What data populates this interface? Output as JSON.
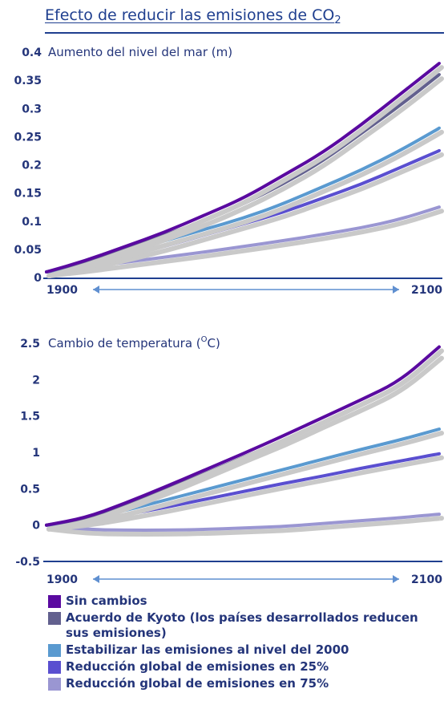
{
  "title": {
    "text": "Efecto de reducir las emisiones de CO",
    "sub": "2"
  },
  "colors": {
    "axis": "#1f3f8f",
    "text": "#24357a",
    "shadow": "#c9c9c9",
    "sin_cambios": "#5a0aa0",
    "kyoto": "#62608e",
    "estabilizar": "#5a9ad0",
    "reduccion25": "#5a4fd0",
    "reduccion75": "#9a96d2"
  },
  "chart_data": [
    {
      "type": "line",
      "title": "Aumento del nivel del mar (m)",
      "ylim": [
        0,
        0.4
      ],
      "yticks": [
        "0",
        "0.05",
        "0.1",
        "0.15",
        "0.2",
        "0.25",
        "0.3",
        "0.35",
        "0.4"
      ],
      "xlim": [
        1900,
        2100
      ],
      "x_start_label": "1900",
      "x_end_label": "2100",
      "x": [
        1900,
        1920,
        1940,
        1960,
        1980,
        2000,
        2020,
        2040,
        2060,
        2080,
        2100
      ],
      "series": [
        {
          "name": "Sin cambios",
          "values": [
            0.01,
            0.03,
            0.055,
            0.08,
            0.11,
            0.14,
            0.18,
            0.22,
            0.27,
            0.325,
            0.38
          ]
        },
        {
          "name": "Acuerdo de Kyoto (los países desarrollados reducen sus emisiones)",
          "values": [
            0.01,
            0.028,
            0.05,
            0.075,
            0.1,
            0.13,
            0.165,
            0.205,
            0.255,
            0.305,
            0.36
          ]
        },
        {
          "name": "Estabilizar las emisiones al nivel del 2000",
          "values": [
            0.01,
            0.025,
            0.045,
            0.065,
            0.085,
            0.105,
            0.13,
            0.16,
            0.19,
            0.225,
            0.265
          ]
        },
        {
          "name": "Reducción global de emisiones en 25%",
          "values": [
            0.01,
            0.022,
            0.038,
            0.055,
            0.075,
            0.095,
            0.115,
            0.14,
            0.165,
            0.195,
            0.225
          ]
        },
        {
          "name": "Reducción global de emisiones en 75%",
          "values": [
            0.01,
            0.018,
            0.027,
            0.036,
            0.045,
            0.055,
            0.065,
            0.076,
            0.088,
            0.103,
            0.125
          ]
        }
      ]
    },
    {
      "type": "line",
      "title": "Cambio de temperatura (",
      "title_sup": "O",
      "title_end": "C)",
      "ylim": [
        -0.5,
        2.5
      ],
      "yticks": [
        "-0.5",
        "0",
        "0.5",
        "1",
        "1.5",
        "2",
        "2.5"
      ],
      "xlim": [
        1900,
        2100
      ],
      "x_start_label": "1900",
      "x_end_label": "2100",
      "x": [
        1900,
        1920,
        1940,
        1960,
        1980,
        2000,
        2020,
        2040,
        2060,
        2080,
        2100
      ],
      "series": [
        {
          "name": "Sin cambios",
          "values": [
            0,
            0.1,
            0.3,
            0.52,
            0.75,
            0.98,
            1.22,
            1.47,
            1.72,
            1.98,
            2.45
          ]
        },
        {
          "name": "Acuerdo de Kyoto (los países desarrollados reducen sus emisiones)",
          "values": [
            0,
            0.09,
            0.28,
            0.48,
            0.7,
            0.93,
            1.15,
            1.4,
            1.64,
            1.9,
            2.35
          ]
        },
        {
          "name": "Estabilizar las emisiones al nivel del 2000",
          "values": [
            0,
            0.07,
            0.2,
            0.34,
            0.48,
            0.62,
            0.76,
            0.9,
            1.04,
            1.17,
            1.32
          ]
        },
        {
          "name": "Reducción global de emisiones en 25%",
          "values": [
            0,
            0.05,
            0.14,
            0.24,
            0.35,
            0.46,
            0.57,
            0.67,
            0.78,
            0.88,
            0.98
          ]
        },
        {
          "name": "Reducción global de emisiones en 75%",
          "values": [
            0,
            -0.06,
            -0.07,
            -0.07,
            -0.06,
            -0.04,
            -0.02,
            0.02,
            0.06,
            0.1,
            0.15
          ]
        }
      ]
    }
  ],
  "legend": [
    {
      "label": "Sin cambios",
      "color": "#5a0aa0"
    },
    {
      "label": "Acuerdo de Kyoto (los países desarrollados reducen sus emisiones)",
      "color": "#62608e"
    },
    {
      "label": "Estabilizar las emisiones al nivel del 2000",
      "color": "#5a9ad0"
    },
    {
      "label": "Reducción global de emisiones en 25%",
      "color": "#5a4fd0"
    },
    {
      "label": "Reducción global de emisiones en 75%",
      "color": "#9a96d2"
    }
  ]
}
